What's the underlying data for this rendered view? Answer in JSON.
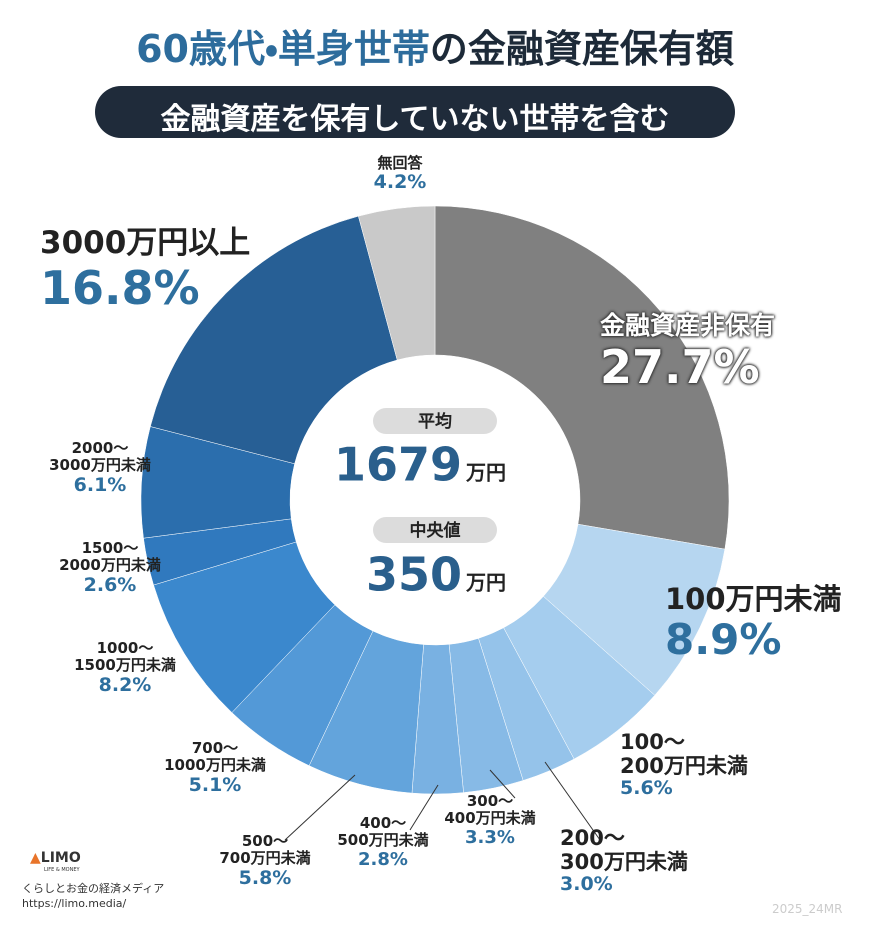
{
  "chart_data": {
    "type": "donut",
    "title": [
      "60歳代・単身世帯",
      "の金融資産保有額"
    ],
    "subtitle": "金融資産を保有していない世帯を含む",
    "categories": [
      "金融資産非保有",
      "100万円未満",
      "100〜\n200万円未満",
      "200〜\n300万円未満",
      "300〜\n400万円未満",
      "400〜\n500万円未満",
      "500〜\n700万円未満",
      "700〜\n1000万円未満",
      "1000〜\n1500万円未満",
      "1500〜\n2000万円未満",
      "2000〜\n3000万円未満",
      "3000万円以上",
      "無回答"
    ],
    "values": [
      27.7,
      8.9,
      5.6,
      3.0,
      3.3,
      2.8,
      5.8,
      5.1,
      8.2,
      2.6,
      6.1,
      16.8,
      4.2
    ],
    "value_labels": [
      "27.7%",
      "8.9%",
      "5.6%",
      "3.0%",
      "3.3%",
      "2.8%",
      "5.8%",
      "5.1%",
      "8.2%",
      "2.6%",
      "6.1%",
      "16.8%",
      "4.2%"
    ],
    "colors": [
      "#808080",
      "#b6d6f0",
      "#a5cdee",
      "#95c3ea",
      "#87bae6",
      "#79b1e2",
      "#63a4dc",
      "#5399d7",
      "#3b88cd",
      "#3079be",
      "#2b6ead",
      "#275f95",
      "#c9c9c9"
    ],
    "center": {
      "mean_label": "平均",
      "mean": 1679,
      "mean_unit": "万円",
      "median_label": "中央値",
      "median": 350,
      "median_unit": "万円"
    },
    "logo": "LIMO",
    "logo_sub": "LIFE & MONEY",
    "tagline": "くらしとお金の経済メディア",
    "url": "https://limo.media/",
    "credit": "2025_24MR"
  }
}
